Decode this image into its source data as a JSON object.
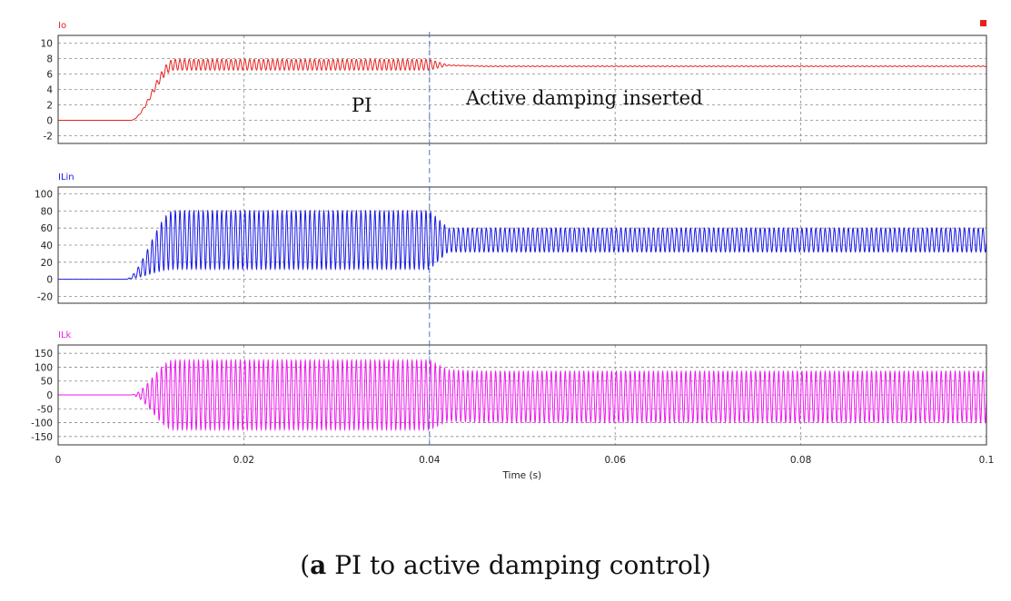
{
  "chart_data": {
    "type": "line",
    "x_axis": {
      "label": "Time (s)",
      "range": [
        0,
        0.1
      ],
      "ticks": [
        0,
        0.02,
        0.04,
        0.06,
        0.08,
        0.1
      ],
      "tick_labels": [
        "0",
        "0.02",
        "0.04",
        "0.06",
        "0.08",
        "0.1"
      ]
    },
    "event_time": 0.04,
    "annotations": {
      "before": "PI",
      "after": "Active damping inserted"
    },
    "panels": [
      {
        "name": "Io",
        "color": "#e8201e",
        "ylim": [
          -3,
          11
        ],
        "yticks": [
          -2,
          0,
          2,
          4,
          6,
          8,
          10
        ],
        "ytick_labels": [
          "-2",
          "0",
          "2",
          "4",
          "6",
          "8",
          "10"
        ],
        "rise_start": 0.0078,
        "rise_end": 0.0125,
        "steady_mean_before": 7.2,
        "ripple_before": 0.7,
        "steady_mean_after": 7.0,
        "ripple_after": 0.05
      },
      {
        "name": "ILin",
        "color": "#1a1ae6",
        "ylim": [
          -28,
          108
        ],
        "yticks": [
          -20,
          0,
          20,
          40,
          60,
          80,
          100
        ],
        "ytick_labels": [
          "-20",
          "0",
          "20",
          "40",
          "60",
          "80",
          "100"
        ],
        "rise_start": 0.0072,
        "rise_end": 0.0125,
        "steady_mean_before": 46,
        "ripple_before": 34,
        "steady_mean_after": 46,
        "ripple_after": 14
      },
      {
        "name": "ILk",
        "color": "#ee1aee",
        "ylim": [
          -180,
          180
        ],
        "yticks": [
          -150,
          -100,
          -50,
          0,
          50,
          100,
          150
        ],
        "ytick_labels": [
          "-150",
          "-100",
          "-50",
          "0",
          "50",
          "100",
          "150"
        ],
        "rise_start": 0.0078,
        "rise_end": 0.0125,
        "steady_mean_before": 0,
        "ripple_before": 125,
        "steady_mean_after": -7,
        "ripple_after": 92
      }
    ]
  },
  "caption": {
    "label": "a",
    "text": " PI to active damping control"
  }
}
